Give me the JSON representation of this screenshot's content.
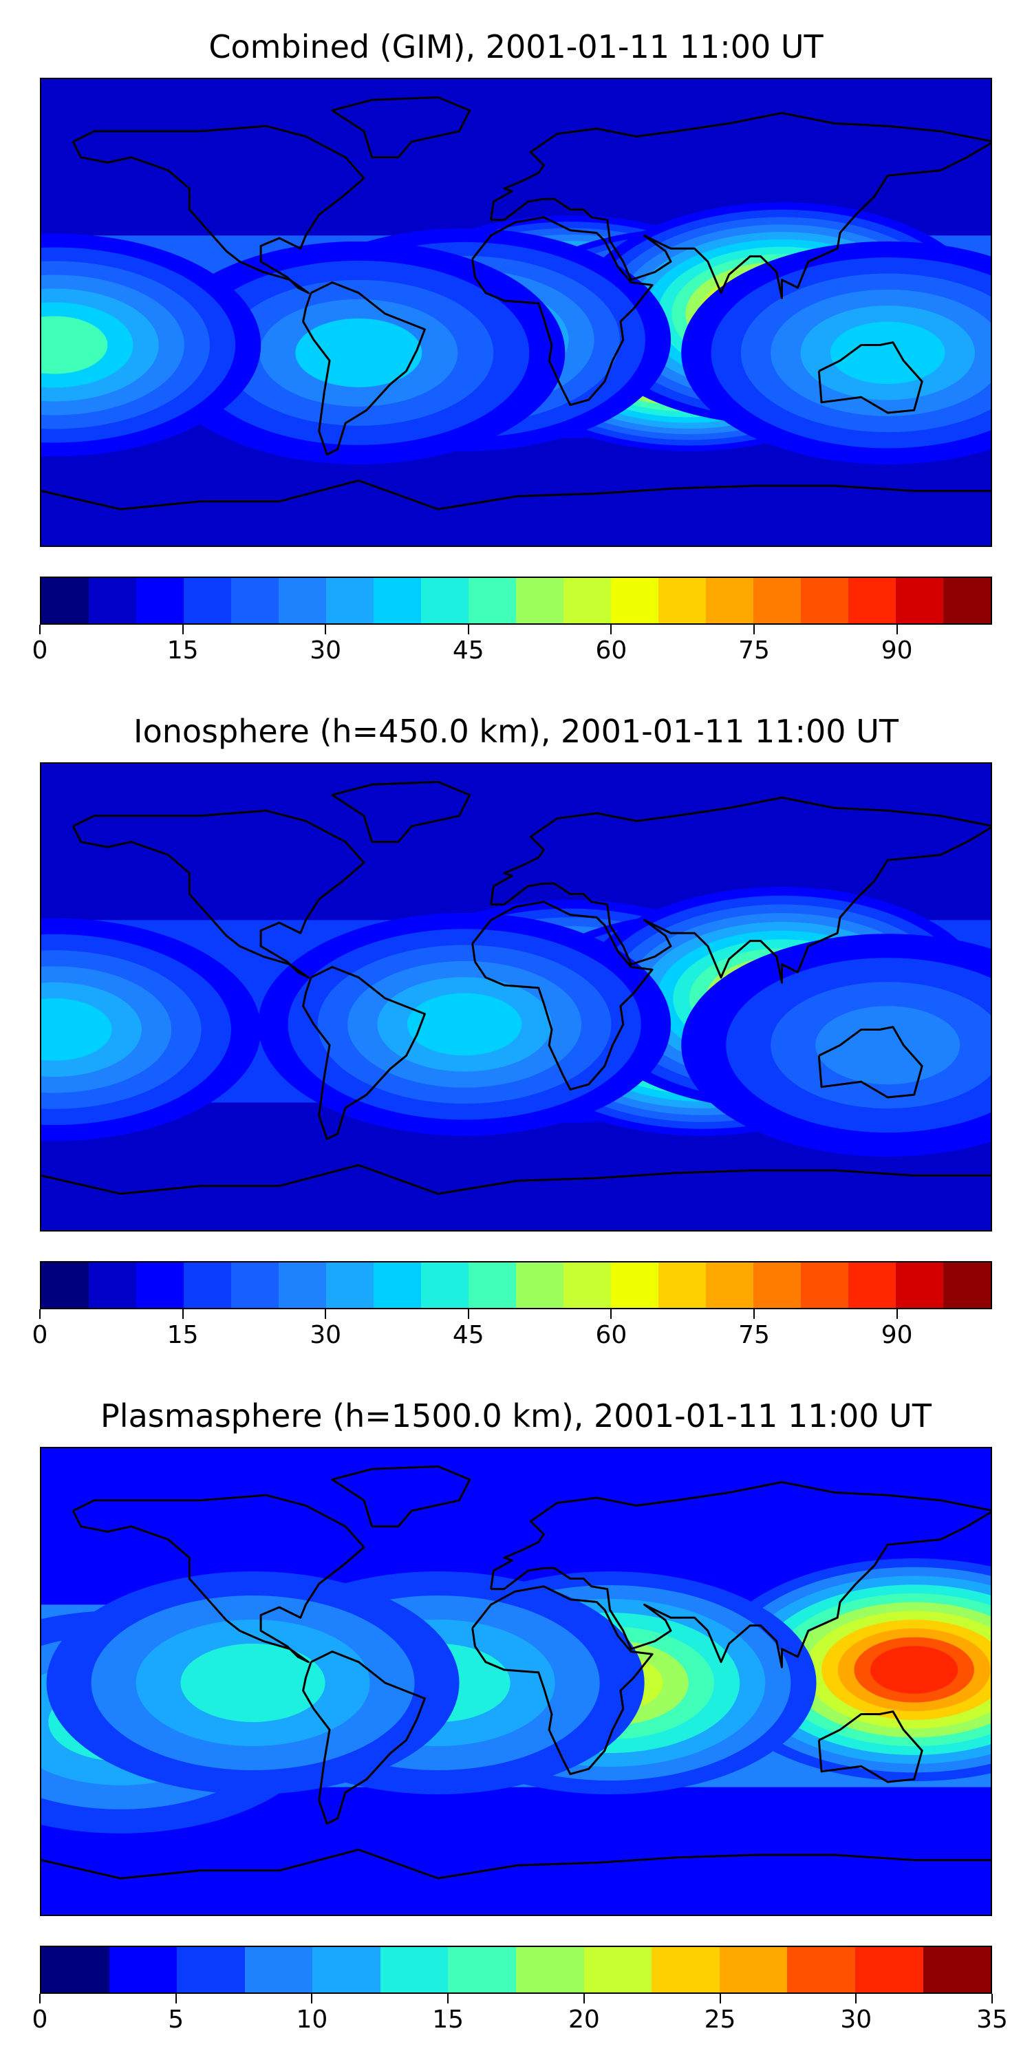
{
  "panels": [
    {
      "title": "Combined (GIM), 2001-01-11 11:00 UT",
      "colorbar": {
        "min": 0,
        "max": 100,
        "levels": 20,
        "ticks": [
          "0",
          "15",
          "30",
          "45",
          "60",
          "75",
          "90"
        ],
        "tick_values": [
          0,
          15,
          30,
          45,
          60,
          75,
          90
        ]
      },
      "field": {
        "background_level": 0.08,
        "blobs": [
          {
            "lon": 20,
            "lat": -5,
            "level": 0.85
          },
          {
            "lon": 65,
            "lat": -10,
            "level": 0.95
          },
          {
            "lon": 100,
            "lat": 0,
            "level": 0.75
          },
          {
            "lon": -20,
            "lat": -10,
            "level": 0.45
          },
          {
            "lon": -60,
            "lat": -15,
            "level": 0.35
          },
          {
            "lon": -175,
            "lat": -12,
            "level": 0.45
          },
          {
            "lon": 140,
            "lat": -15,
            "level": 0.38
          }
        ]
      }
    },
    {
      "title": "Ionosphere  (h=450.0 km), 2001-01-11 11:00 UT",
      "colorbar": {
        "min": 0,
        "max": 100,
        "levels": 20,
        "ticks": [
          "0",
          "15",
          "30",
          "45",
          "60",
          "75",
          "90"
        ],
        "tick_values": [
          0,
          15,
          30,
          45,
          60,
          75,
          90
        ]
      },
      "field": {
        "background_level": 0.06,
        "blobs": [
          {
            "lon": 20,
            "lat": -5,
            "level": 0.62
          },
          {
            "lon": 70,
            "lat": -10,
            "level": 0.78
          },
          {
            "lon": 100,
            "lat": 0,
            "level": 0.62
          },
          {
            "lon": -20,
            "lat": -10,
            "level": 0.35
          },
          {
            "lon": -175,
            "lat": -12,
            "level": 0.35
          },
          {
            "lon": 140,
            "lat": -18,
            "level": 0.28
          }
        ]
      }
    },
    {
      "title": "Plasmasphere (h=1500.0 km), 2001-01-11 11:00 UT",
      "colorbar": {
        "min": 0,
        "max": 35,
        "levels": 14,
        "ticks": [
          "0",
          "5",
          "10",
          "15",
          "20",
          "25",
          "30",
          "35"
        ],
        "tick_values": [
          0,
          5,
          10,
          15,
          20,
          25,
          30,
          35
        ]
      },
      "field": {
        "background_level": 0.1,
        "blobs": [
          {
            "lon": 150,
            "lat": 5,
            "level": 0.88
          },
          {
            "lon": 35,
            "lat": 0,
            "level": 0.6
          },
          {
            "lon": -30,
            "lat": 0,
            "level": 0.42
          },
          {
            "lon": -150,
            "lat": -15,
            "level": 0.42
          },
          {
            "lon": -100,
            "lat": 0,
            "level": 0.38
          }
        ]
      }
    }
  ],
  "colormap": [
    "#00007f",
    "#0000c8",
    "#0000ff",
    "#0a3cff",
    "#1560ff",
    "#1e82ff",
    "#1aa8ff",
    "#00d0ff",
    "#1ef0e0",
    "#40ffb8",
    "#70ff8a",
    "#9cff5e",
    "#c8ff30",
    "#f0ff00",
    "#ffd000",
    "#ffa800",
    "#ff7c00",
    "#ff5200",
    "#ff2600",
    "#d40000",
    "#8f0000"
  ]
}
